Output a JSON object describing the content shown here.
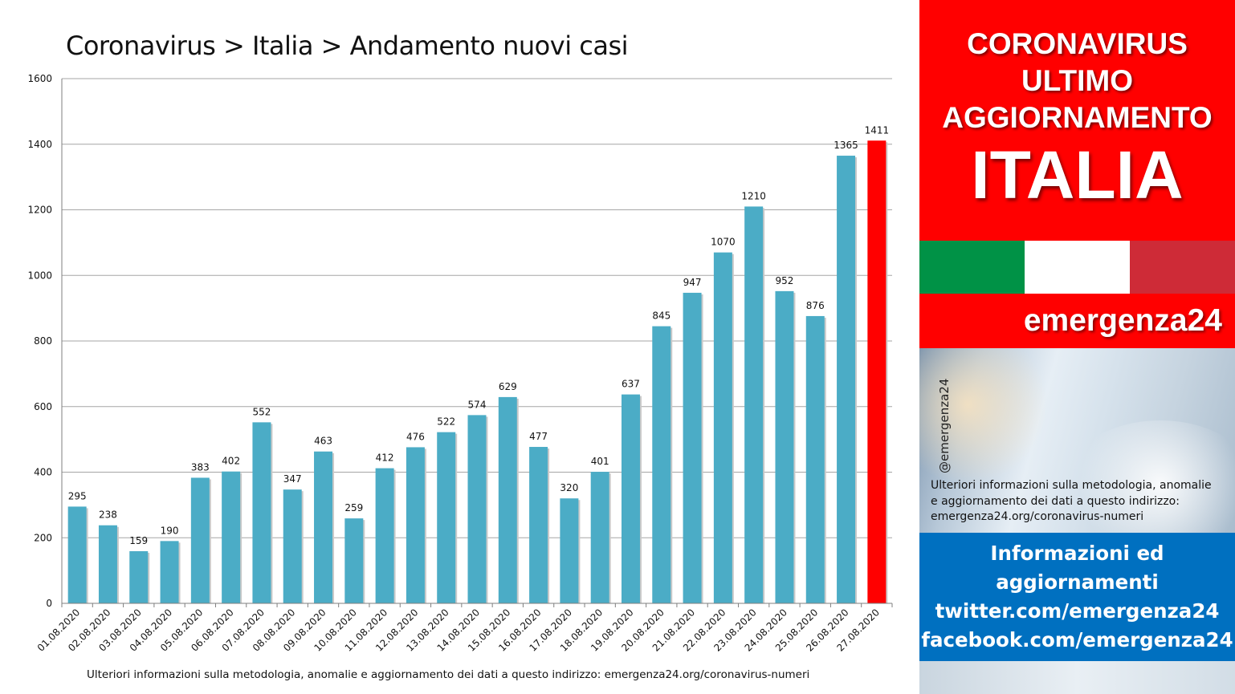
{
  "chart_data": {
    "type": "bar",
    "title": "Coronavirus > Italia > Andamento nuovi casi",
    "categories": [
      "01.08.2020",
      "02.08.2020",
      "03.08.2020",
      "04.08.2020",
      "05.08.2020",
      "06.08.2020",
      "07.08.2020",
      "08.08.2020",
      "09.08.2020",
      "10.08.2020",
      "11.08.2020",
      "12.08.2020",
      "13.08.2020",
      "14.08.2020",
      "15.08.2020",
      "16.08.2020",
      "17.08.2020",
      "18.08.2020",
      "19.08.2020",
      "20.08.2020",
      "21.08.2020",
      "22.08.2020",
      "23.08.2020",
      "24.08.2020",
      "25.08.2020",
      "26.08.2020",
      "27.08.2020"
    ],
    "values": [
      295,
      238,
      159,
      190,
      383,
      402,
      552,
      347,
      463,
      259,
      412,
      476,
      522,
      574,
      629,
      477,
      320,
      401,
      637,
      845,
      947,
      1070,
      1210,
      952,
      876,
      1365,
      1411
    ],
    "ylim": [
      0,
      1600
    ],
    "yticks": [
      0,
      200,
      400,
      600,
      800,
      1000,
      1200,
      1400,
      1600
    ],
    "grid": true,
    "legend": "none",
    "colors": {
      "bar": "#4bacc6",
      "highlight": "#ff0000"
    },
    "highlight_index": 26,
    "footnote": "Ulteriori informazioni sulla metodologia, anomalie e aggiornamento dei dati a questo indirizzo: emergenza24.org/coronavirus-numeri"
  },
  "panel": {
    "header_line1": "CORONAVIRUS",
    "header_line2": "ULTIMO",
    "header_line3": "AGGIORNAMENTO",
    "country": "ITALIA",
    "flag_colors": [
      "#009246",
      "#ffffff",
      "#ce2b37"
    ],
    "brand": "emergenza24",
    "handle": "@emergenza24",
    "info_line1": "Ulteriori informazioni sulla metodologia, anomalie",
    "info_line2": "e aggiornamento dei dati a questo indirizzo:",
    "info_line3": "emergenza24.org/coronavirus-numeri",
    "social_line1": "Informazioni ed",
    "social_line2": "aggiornamenti",
    "social_line3": "twitter.com/emergenza24",
    "social_line4": "facebook.com/emergenza24"
  }
}
